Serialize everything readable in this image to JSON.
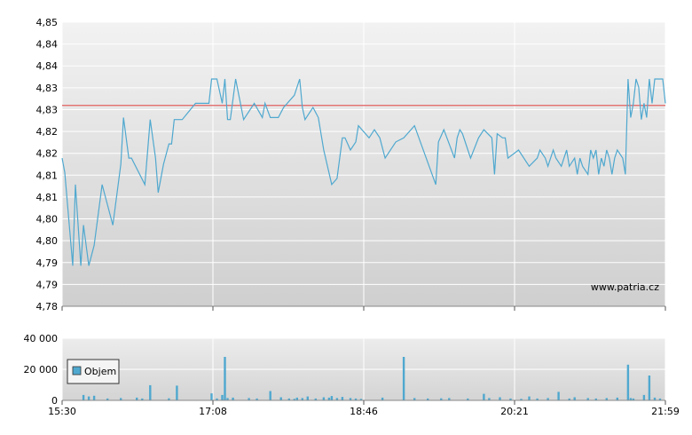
{
  "chart_data": [
    {
      "type": "line",
      "ylim": [
        4.78,
        4.85
      ],
      "yticks": [
        "4,78",
        "4,79",
        "4,79",
        "4,80",
        "4,80",
        "4,81",
        "4,81",
        "4,82",
        "4,82",
        "4,83",
        "4,83",
        "4,84",
        "4,84",
        "4,85"
      ],
      "xticks": [
        "15:30",
        "17:08",
        "18:46",
        "20:21",
        "21:59"
      ],
      "reference_line": 4.8295,
      "grid": true,
      "watermark": "www.patria.cz",
      "colors": {
        "line": "#4fa8cf",
        "reference": "#e06060",
        "grid": "#ffffff"
      },
      "x": [
        0,
        1,
        4,
        5,
        7,
        8,
        9,
        10,
        12,
        15,
        19,
        20,
        22,
        23,
        25,
        26,
        31,
        33,
        35,
        36,
        38,
        40,
        41,
        42,
        45,
        50,
        55,
        56,
        58,
        60,
        61,
        62,
        63,
        65,
        68,
        72,
        75,
        76,
        78,
        80,
        81,
        83,
        87,
        89,
        90,
        91,
        94,
        96,
        98,
        101,
        103,
        105,
        106,
        108,
        110,
        111,
        115,
        117,
        119,
        121,
        125,
        128,
        132,
        140,
        141,
        143,
        147,
        148,
        149,
        150,
        153,
        156,
        158,
        161,
        162,
        163,
        165,
        166,
        167,
        171,
        175,
        178,
        179,
        181,
        182,
        183,
        184,
        185,
        187,
        188,
        189,
        190,
        192,
        193,
        194,
        195,
        197,
        198,
        199,
        200,
        201,
        202,
        203,
        204,
        205,
        206,
        207,
        208,
        210,
        211,
        212,
        213,
        214,
        215,
        216,
        217,
        218,
        219,
        220,
        221,
        222,
        225,
        226
      ],
      "values": [
        4.8165,
        4.813,
        4.79,
        4.81,
        4.79,
        4.8,
        4.795,
        4.79,
        4.795,
        4.81,
        4.8,
        4.805,
        4.815,
        4.8265,
        4.8165,
        4.8165,
        4.81,
        4.826,
        4.8165,
        4.808,
        4.815,
        4.82,
        4.82,
        4.826,
        4.826,
        4.83,
        4.83,
        4.836,
        4.836,
        4.83,
        4.836,
        4.826,
        4.826,
        4.836,
        4.826,
        4.83,
        4.8265,
        4.83,
        4.8265,
        4.8265,
        4.8265,
        4.829,
        4.832,
        4.836,
        4.829,
        4.826,
        4.829,
        4.8265,
        4.8185,
        4.81,
        4.8115,
        4.8215,
        4.8215,
        4.8185,
        4.8205,
        4.8245,
        4.8215,
        4.8235,
        4.8215,
        4.8165,
        4.8205,
        4.8215,
        4.8245,
        4.81,
        4.8205,
        4.8235,
        4.8165,
        4.8215,
        4.8235,
        4.8225,
        4.8165,
        4.8215,
        4.8235,
        4.8215,
        4.8125,
        4.8225,
        4.8215,
        4.8215,
        4.8165,
        4.8185,
        4.8145,
        4.8165,
        4.8185,
        4.8165,
        4.8145,
        4.8165,
        4.8185,
        4.8165,
        4.8145,
        4.8165,
        4.8185,
        4.8145,
        4.8165,
        4.8125,
        4.8165,
        4.8145,
        4.8125,
        4.8185,
        4.8165,
        4.8185,
        4.8125,
        4.8165,
        4.8145,
        4.8185,
        4.8165,
        4.8125,
        4.8165,
        4.8185,
        4.8165,
        4.8125,
        4.836,
        4.8265,
        4.83,
        4.836,
        4.834,
        4.826,
        4.83,
        4.8265,
        4.836,
        4.83,
        4.836,
        4.836,
        4.83
      ]
    },
    {
      "type": "bar",
      "ylim": [
        0,
        40000
      ],
      "yticks": [
        "0",
        "20 000",
        "40 000"
      ],
      "xticks": [
        "15:30",
        "17:08",
        "18:46",
        "20:21",
        "21:59"
      ],
      "legend": "Objem",
      "colors": {
        "bar": "#4fa8cf"
      },
      "x": [
        8,
        10,
        12,
        17,
        22,
        28,
        30,
        33,
        40,
        43,
        56,
        58,
        60,
        61,
        62,
        64,
        70,
        73,
        78,
        82,
        85,
        87,
        88,
        90,
        92,
        95,
        98,
        100,
        101,
        103,
        105,
        108,
        110,
        112,
        120,
        128,
        132,
        137,
        142,
        145,
        152,
        158,
        160,
        164,
        168,
        172,
        175,
        178,
        182,
        186,
        190,
        192,
        197,
        200,
        204,
        208,
        212,
        213,
        214,
        218,
        220,
        222,
        224
      ],
      "values": [
        3500,
        2500,
        3000,
        1200,
        1500,
        1800,
        1200,
        9800,
        1300,
        9500,
        4500,
        1200,
        3500,
        28000,
        1500,
        1800,
        1500,
        1200,
        6000,
        2000,
        1200,
        1000,
        1800,
        1500,
        2500,
        1200,
        2000,
        1800,
        2800,
        1500,
        2200,
        1500,
        1200,
        1000,
        1800,
        28000,
        1500,
        1200,
        1300,
        1500,
        1200,
        4200,
        1500,
        2000,
        1200,
        1000,
        2500,
        1200,
        1500,
        5500,
        1200,
        2000,
        1500,
        1200,
        1500,
        1800,
        23000,
        1500,
        1200,
        3500,
        16000,
        1800,
        1200
      ]
    }
  ]
}
